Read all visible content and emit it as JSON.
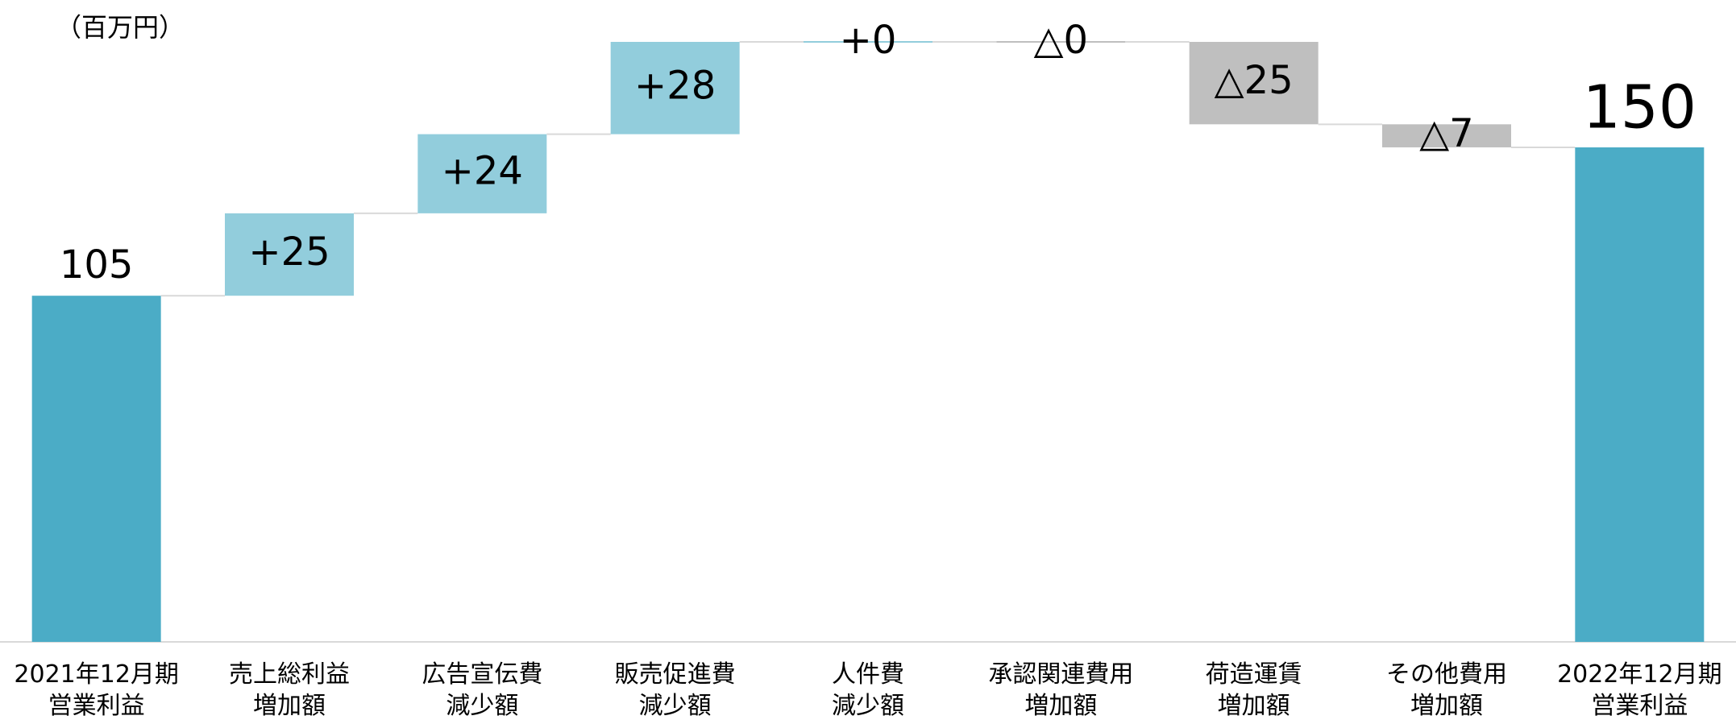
{
  "chart_data": {
    "type": "waterfall",
    "unit": "（百万円）",
    "categories": [
      [
        "2021年12月期",
        "営業利益"
      ],
      [
        "売上総利益",
        "増加額"
      ],
      [
        "広告宣伝費",
        "減少額"
      ],
      [
        "販売促進費",
        "減少額"
      ],
      [
        "人件費",
        "減少額"
      ],
      [
        "承認関連費用",
        "増加額"
      ],
      [
        "荷造運賃",
        "増加額"
      ],
      [
        "その他費用",
        "増加額"
      ],
      [
        "2022年12月期",
        "営業利益"
      ]
    ],
    "values": [
      105,
      25,
      24,
      28,
      0,
      0,
      -25,
      -7,
      150
    ],
    "value_labels": [
      "105",
      "+25",
      "+24",
      "+28",
      "+0",
      "△0",
      "△25",
      "△7",
      "150"
    ],
    "colors": [
      "#4bacc6",
      "#92cddc",
      "#92cddc",
      "#92cddc",
      "#92cddc",
      "#bfbfbf",
      "#bfbfbf",
      "#bfbfbf",
      "#4bacc6"
    ]
  }
}
